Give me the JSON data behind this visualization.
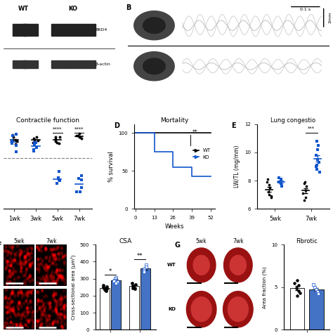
{
  "fig_width": 4.74,
  "fig_height": 4.74,
  "dpi": 100,
  "contractile_title": "Contractile function",
  "contractile_xlabel_ticks": [
    "1wk",
    "3wk",
    "5wk",
    "7wk"
  ],
  "mortality_title": "Mortality",
  "mortality_xlabel": "Weeks",
  "mortality_ylabel": "% survival",
  "mortality_xticks": [
    0,
    13,
    26,
    39,
    52
  ],
  "mortality_yticks": [
    0,
    50,
    100
  ],
  "lung_title": "Lung congestio",
  "lung_ylabel": "LW/TL (mg/mm)",
  "lung_xticks": [
    "5wk",
    "7wk"
  ],
  "lung_wt_5wk": [
    7.7,
    7.5,
    7.2,
    7.0,
    6.9,
    6.8,
    7.9,
    8.1
  ],
  "lung_wt_7wk": [
    7.8,
    7.6,
    7.3,
    7.1,
    6.8,
    6.6,
    7.9
  ],
  "lung_ko_5wk": [
    8.2,
    8.1,
    7.9,
    7.8,
    7.6
  ],
  "lung_ko_7wk": [
    10.8,
    10.5,
    10.2,
    9.8,
    9.5,
    9.3,
    9.1,
    9.0,
    8.8,
    8.6
  ],
  "lung_ylim": [
    6,
    12
  ],
  "lung_yticks": [
    6,
    8,
    10,
    12
  ],
  "csa_title": "CSA",
  "csa_ylabel": "Cross-sectional area (μm²)",
  "csa_xticks": [
    "5wk",
    "7wk"
  ],
  "csa_wt_5wk": [
    260,
    255,
    248,
    242,
    238,
    232,
    228
  ],
  "csa_ko_5wk": [
    305,
    298,
    292,
    288,
    282,
    275
  ],
  "csa_wt_7wk": [
    272,
    265,
    258,
    252,
    245,
    240
  ],
  "csa_ko_7wk": [
    380,
    370,
    358,
    348,
    338
  ],
  "csa_ylim": [
    0,
    500
  ],
  "csa_yticks": [
    0,
    100,
    200,
    300,
    400,
    500
  ],
  "fibrotic_title": "Fibrotic",
  "fibrotic_ylabel": "Area fraction (%)",
  "fibrotic_xtick": [
    "5wk"
  ],
  "fibrotic_wt_5wk": [
    5.5,
    5.2,
    4.9,
    4.6,
    4.3,
    4.0,
    5.8
  ],
  "fibrotic_ko_5wk": [
    5.3,
    5.0,
    4.7,
    4.5,
    4.2
  ],
  "fibrotic_ylim": [
    0,
    10
  ],
  "fibrotic_yticks": [
    0,
    5,
    10
  ],
  "wt_color": "#000000",
  "ko_color": "#1155CC",
  "bar_wt_color": "#ffffff",
  "bar_ko_color": "#4472C4",
  "background_color": "#ffffff"
}
